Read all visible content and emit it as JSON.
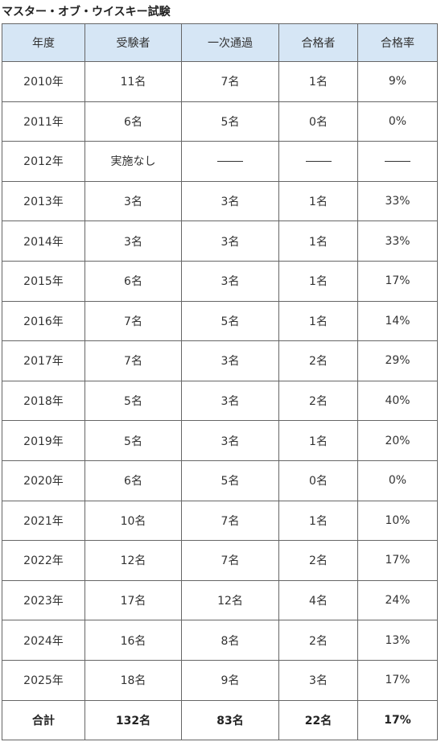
{
  "title": "マスター・オブ・ウイスキー試験",
  "table": {
    "headers": [
      "年度",
      "受験者",
      "一次通過",
      "合格者",
      "合格率"
    ],
    "rows": [
      [
        "2010年",
        "11名",
        "7名",
        "1名",
        "9%"
      ],
      [
        "2011年",
        "6名",
        "5名",
        "0名",
        "0%"
      ],
      [
        "2012年",
        "実施なし",
        "——",
        "——",
        "——"
      ],
      [
        "2013年",
        "3名",
        "3名",
        "1名",
        "33%"
      ],
      [
        "2014年",
        "3名",
        "3名",
        "1名",
        "33%"
      ],
      [
        "2015年",
        "6名",
        "3名",
        "1名",
        "17%"
      ],
      [
        "2016年",
        "7名",
        "5名",
        "1名",
        "14%"
      ],
      [
        "2017年",
        "7名",
        "3名",
        "2名",
        "29%"
      ],
      [
        "2018年",
        "5名",
        "3名",
        "2名",
        "40%"
      ],
      [
        "2019年",
        "5名",
        "3名",
        "1名",
        "20%"
      ],
      [
        "2020年",
        "6名",
        "5名",
        "0名",
        "0%"
      ],
      [
        "2021年",
        "10名",
        "7名",
        "1名",
        "10%"
      ],
      [
        "2022年",
        "12名",
        "7名",
        "2名",
        "17%"
      ],
      [
        "2023年",
        "17名",
        "12名",
        "4名",
        "24%"
      ],
      [
        "2024年",
        "16名",
        "8名",
        "2名",
        "13%"
      ],
      [
        "2025年",
        "18名",
        "9名",
        "3名",
        "17%"
      ]
    ],
    "total": [
      "合計",
      "132名",
      "83名",
      "22名",
      "17%"
    ]
  },
  "colors": {
    "header_bg": "#d6e6f5",
    "border": "#666666",
    "text": "#333333"
  }
}
